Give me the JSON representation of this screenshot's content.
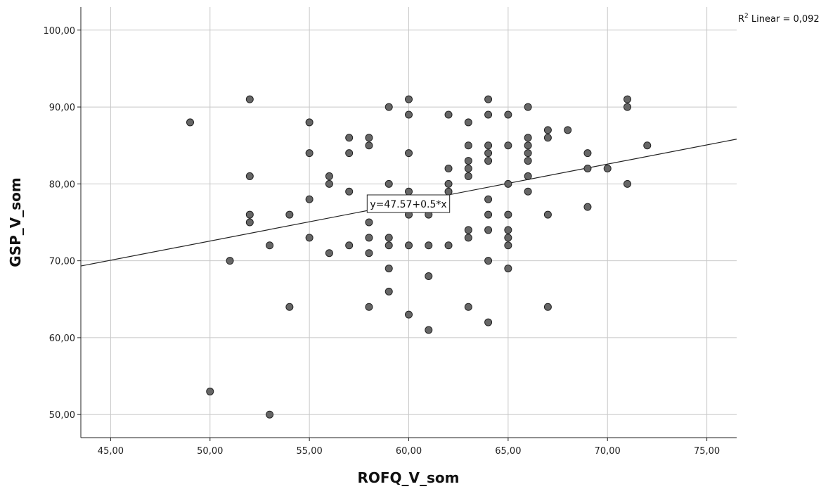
{
  "chart_data": {
    "type": "scatter",
    "xlabel": "ROFQ_V_som",
    "ylabel": "GSP_V_som",
    "xlim": [
      43.5,
      76.5
    ],
    "ylim": [
      47,
      103
    ],
    "x_ticks": [
      45,
      50,
      55,
      60,
      65,
      70,
      75
    ],
    "y_ticks": [
      50,
      60,
      70,
      80,
      90,
      100
    ],
    "x_tick_labels": [
      "45,00",
      "50,00",
      "55,00",
      "60,00",
      "65,00",
      "70,00",
      "75,00"
    ],
    "y_tick_labels": [
      "50,00",
      "60,00",
      "70,00",
      "80,00",
      "90,00",
      "100,00"
    ],
    "grid": true,
    "fit_line": {
      "intercept": 47.57,
      "slope": 0.5,
      "label": "y=47.57+0.5*x"
    },
    "r2_annotation": {
      "prefix": "R",
      "superscript": "2",
      "text": " Linear = 0,092"
    },
    "point_color": "#666666",
    "points": [
      {
        "x": 49,
        "y": 88
      },
      {
        "x": 50,
        "y": 53
      },
      {
        "x": 51,
        "y": 70
      },
      {
        "x": 52,
        "y": 91
      },
      {
        "x": 52,
        "y": 81
      },
      {
        "x": 52,
        "y": 76
      },
      {
        "x": 52,
        "y": 75
      },
      {
        "x": 53,
        "y": 72
      },
      {
        "x": 53,
        "y": 50
      },
      {
        "x": 54,
        "y": 76
      },
      {
        "x": 54,
        "y": 64
      },
      {
        "x": 55,
        "y": 88
      },
      {
        "x": 55,
        "y": 84
      },
      {
        "x": 55,
        "y": 78
      },
      {
        "x": 55,
        "y": 73
      },
      {
        "x": 56,
        "y": 81
      },
      {
        "x": 56,
        "y": 80
      },
      {
        "x": 56,
        "y": 71
      },
      {
        "x": 57,
        "y": 86
      },
      {
        "x": 57,
        "y": 84
      },
      {
        "x": 57,
        "y": 79
      },
      {
        "x": 57,
        "y": 72
      },
      {
        "x": 58,
        "y": 86
      },
      {
        "x": 58,
        "y": 85
      },
      {
        "x": 58,
        "y": 75
      },
      {
        "x": 58,
        "y": 73
      },
      {
        "x": 58,
        "y": 71
      },
      {
        "x": 58,
        "y": 64
      },
      {
        "x": 59,
        "y": 90
      },
      {
        "x": 59,
        "y": 80
      },
      {
        "x": 59,
        "y": 73
      },
      {
        "x": 59,
        "y": 72
      },
      {
        "x": 59,
        "y": 69
      },
      {
        "x": 59,
        "y": 66
      },
      {
        "x": 60,
        "y": 91
      },
      {
        "x": 60,
        "y": 89
      },
      {
        "x": 60,
        "y": 84
      },
      {
        "x": 60,
        "y": 79
      },
      {
        "x": 60,
        "y": 76
      },
      {
        "x": 60,
        "y": 72
      },
      {
        "x": 60,
        "y": 63
      },
      {
        "x": 61,
        "y": 76
      },
      {
        "x": 61,
        "y": 72
      },
      {
        "x": 61,
        "y": 68
      },
      {
        "x": 61,
        "y": 61
      },
      {
        "x": 62,
        "y": 89
      },
      {
        "x": 62,
        "y": 82
      },
      {
        "x": 62,
        "y": 80
      },
      {
        "x": 62,
        "y": 79
      },
      {
        "x": 62,
        "y": 72
      },
      {
        "x": 63,
        "y": 88
      },
      {
        "x": 63,
        "y": 85
      },
      {
        "x": 63,
        "y": 83
      },
      {
        "x": 63,
        "y": 82
      },
      {
        "x": 63,
        "y": 81
      },
      {
        "x": 63,
        "y": 74
      },
      {
        "x": 63,
        "y": 73
      },
      {
        "x": 63,
        "y": 64
      },
      {
        "x": 64,
        "y": 91
      },
      {
        "x": 64,
        "y": 89
      },
      {
        "x": 64,
        "y": 85
      },
      {
        "x": 64,
        "y": 84
      },
      {
        "x": 64,
        "y": 83
      },
      {
        "x": 64,
        "y": 78
      },
      {
        "x": 64,
        "y": 76
      },
      {
        "x": 64,
        "y": 74
      },
      {
        "x": 64,
        "y": 70
      },
      {
        "x": 64,
        "y": 62
      },
      {
        "x": 65,
        "y": 89
      },
      {
        "x": 65,
        "y": 85
      },
      {
        "x": 65,
        "y": 80
      },
      {
        "x": 65,
        "y": 76
      },
      {
        "x": 65,
        "y": 74
      },
      {
        "x": 65,
        "y": 73
      },
      {
        "x": 65,
        "y": 72
      },
      {
        "x": 65,
        "y": 69
      },
      {
        "x": 66,
        "y": 90
      },
      {
        "x": 66,
        "y": 86
      },
      {
        "x": 66,
        "y": 85
      },
      {
        "x": 66,
        "y": 84
      },
      {
        "x": 66,
        "y": 83
      },
      {
        "x": 66,
        "y": 81
      },
      {
        "x": 66,
        "y": 79
      },
      {
        "x": 67,
        "y": 87
      },
      {
        "x": 67,
        "y": 86
      },
      {
        "x": 67,
        "y": 76
      },
      {
        "x": 67,
        "y": 64
      },
      {
        "x": 68,
        "y": 87
      },
      {
        "x": 69,
        "y": 84
      },
      {
        "x": 69,
        "y": 82
      },
      {
        "x": 69,
        "y": 77
      },
      {
        "x": 70,
        "y": 82
      },
      {
        "x": 71,
        "y": 91
      },
      {
        "x": 71,
        "y": 90
      },
      {
        "x": 71,
        "y": 80
      },
      {
        "x": 72,
        "y": 85
      }
    ]
  }
}
